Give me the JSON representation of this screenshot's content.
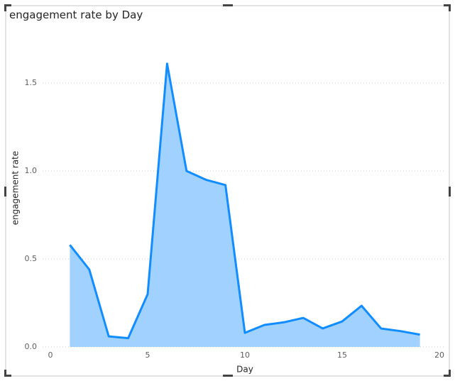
{
  "chart_data": {
    "type": "area",
    "title": "engagement rate by Day",
    "x_label": "Day",
    "y_label": "engagement rate",
    "x": [
      1,
      2,
      3,
      4,
      5,
      6,
      7,
      8,
      9,
      10,
      11,
      12,
      13,
      14,
      15,
      16,
      17,
      18,
      19
    ],
    "series": [
      {
        "name": "engagement rate",
        "color": "#118dff",
        "fill": "#a0d1ff",
        "values": [
          0.58,
          0.44,
          0.06,
          0.05,
          0.3,
          1.61,
          1.0,
          0.95,
          0.92,
          0.08,
          0.125,
          0.14,
          0.165,
          0.105,
          0.145,
          0.234,
          0.105,
          0.09,
          0.07
        ]
      }
    ],
    "xlim": [
      0,
      20
    ],
    "xticks": [
      0,
      5,
      10,
      15,
      20
    ],
    "ylim": [
      0,
      1.7
    ],
    "yticks": [
      {
        "value": 0,
        "label": "0.0"
      },
      0.5,
      {
        "value": 1,
        "label": "1.0"
      },
      1.5
    ],
    "grid": true
  }
}
